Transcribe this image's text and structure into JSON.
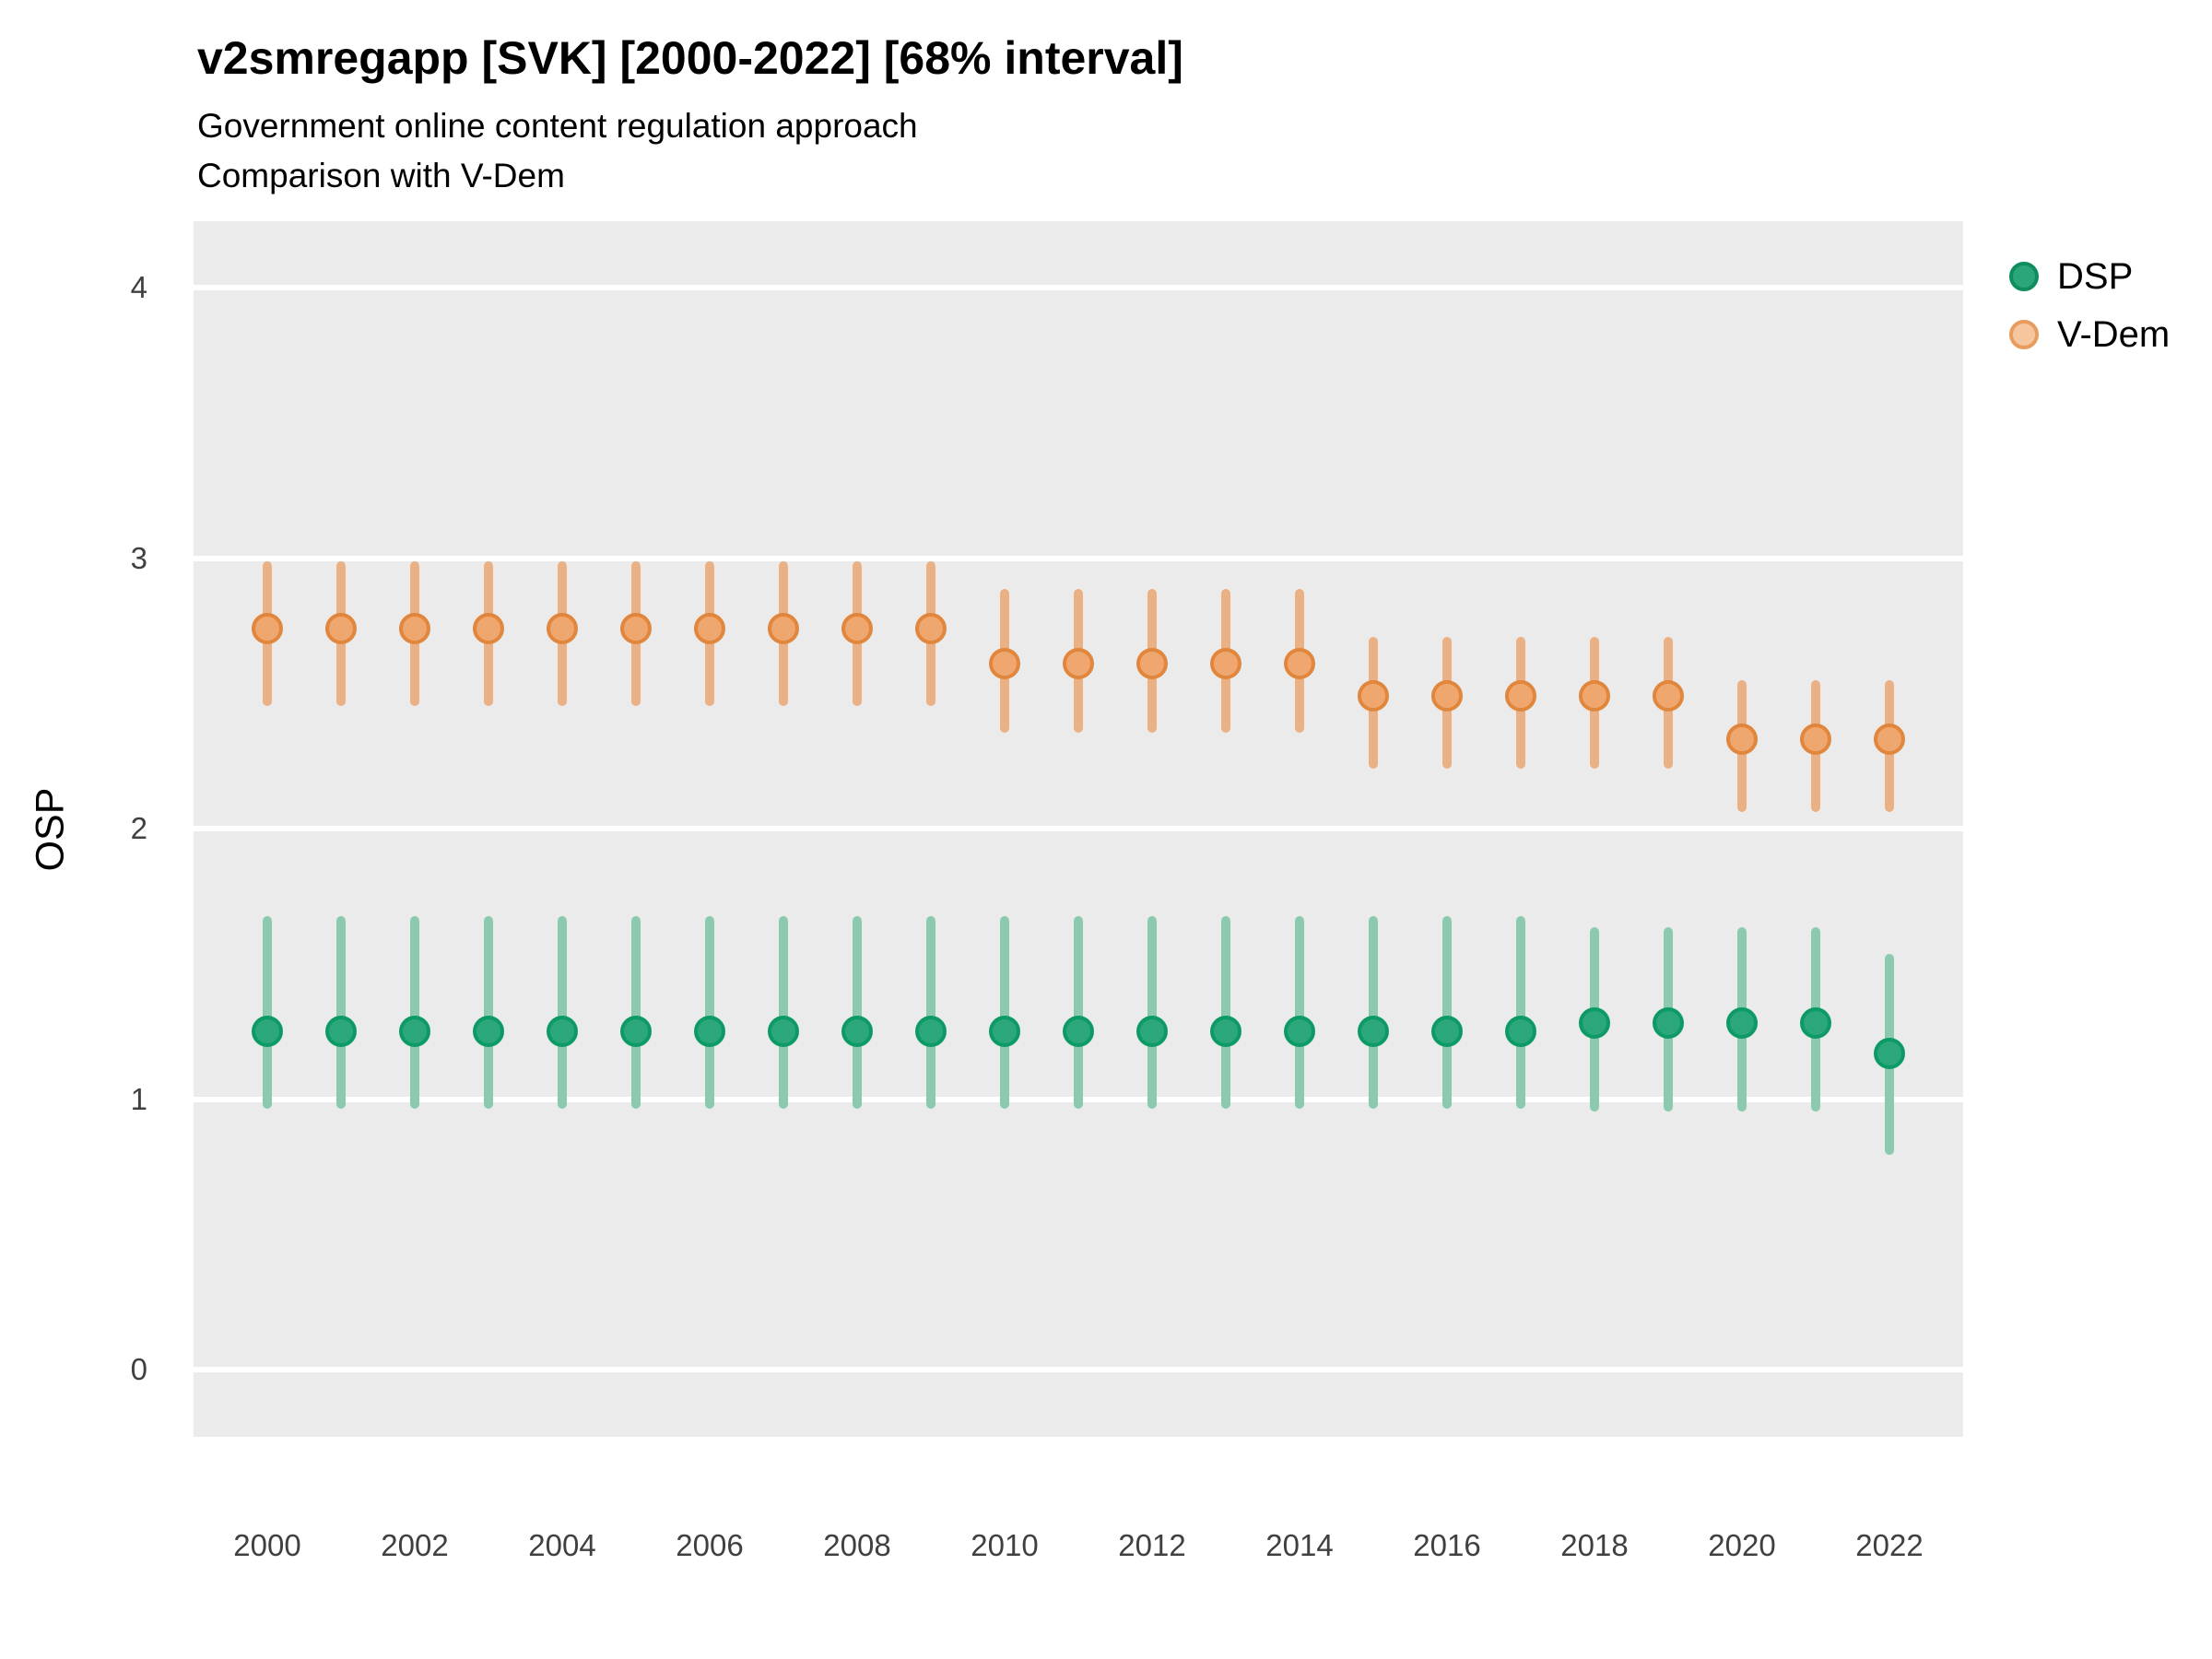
{
  "header": {
    "title": "v2smregapp [SVK] [2000-2022] [68% interval]",
    "subtitle1": "Government online content regulation approach",
    "subtitle2": "Comparison with V-Dem"
  },
  "y_axis": {
    "label": "OSP",
    "ticks": [
      4,
      3,
      2,
      1,
      0
    ]
  },
  "x_axis": {
    "ticks": [
      2000,
      2002,
      2004,
      2006,
      2008,
      2010,
      2012,
      2014,
      2016,
      2018,
      2020,
      2022
    ]
  },
  "legend": {
    "position": "right",
    "items": [
      {
        "label": "DSP",
        "fill": "#2aa678",
        "stroke": "#0e8e5f"
      },
      {
        "label": "V-Dem",
        "fill": "#f6c69f",
        "stroke": "#e89c5d"
      }
    ]
  },
  "colors": {
    "panel_bg": "#ebebeb",
    "grid": "#ffffff",
    "dsp_point_fill": "#2ba77a",
    "dsp_point_stroke": "#0e9a66",
    "dsp_interval": "#8ccab0",
    "vdem_point_fill": "#efa76f",
    "vdem_point_stroke": "#e0873d",
    "vdem_interval": "#ecb085"
  },
  "chart_data": {
    "type": "scatter",
    "title": "v2smregapp [SVK] [2000-2022] [68% interval]",
    "subtitle": "Government online content regulation approach — Comparison with V-Dem",
    "xlabel": "",
    "ylabel": "OSP",
    "interval": "68%",
    "grid": "horizontal-only",
    "legend_position": "right",
    "xlim": [
      1999,
      2023
    ],
    "ylim": [
      -0.25,
      4.25
    ],
    "x": [
      2000,
      2001,
      2002,
      2003,
      2004,
      2005,
      2006,
      2007,
      2008,
      2009,
      2010,
      2011,
      2012,
      2013,
      2014,
      2015,
      2016,
      2017,
      2018,
      2019,
      2020,
      2021,
      2022
    ],
    "series": [
      {
        "name": "DSP",
        "key": "dsp",
        "points": [
          {
            "year": 2000,
            "value": 1.25,
            "lo": 0.98,
            "hi": 1.66
          },
          {
            "year": 2001,
            "value": 1.25,
            "lo": 0.98,
            "hi": 1.66
          },
          {
            "year": 2002,
            "value": 1.25,
            "lo": 0.98,
            "hi": 1.66
          },
          {
            "year": 2003,
            "value": 1.25,
            "lo": 0.98,
            "hi": 1.66
          },
          {
            "year": 2004,
            "value": 1.25,
            "lo": 0.98,
            "hi": 1.66
          },
          {
            "year": 2005,
            "value": 1.25,
            "lo": 0.98,
            "hi": 1.66
          },
          {
            "year": 2006,
            "value": 1.25,
            "lo": 0.98,
            "hi": 1.66
          },
          {
            "year": 2007,
            "value": 1.25,
            "lo": 0.98,
            "hi": 1.66
          },
          {
            "year": 2008,
            "value": 1.25,
            "lo": 0.98,
            "hi": 1.66
          },
          {
            "year": 2009,
            "value": 1.25,
            "lo": 0.98,
            "hi": 1.66
          },
          {
            "year": 2010,
            "value": 1.25,
            "lo": 0.98,
            "hi": 1.66
          },
          {
            "year": 2011,
            "value": 1.25,
            "lo": 0.98,
            "hi": 1.66
          },
          {
            "year": 2012,
            "value": 1.25,
            "lo": 0.98,
            "hi": 1.66
          },
          {
            "year": 2013,
            "value": 1.25,
            "lo": 0.98,
            "hi": 1.66
          },
          {
            "year": 2014,
            "value": 1.25,
            "lo": 0.98,
            "hi": 1.66
          },
          {
            "year": 2015,
            "value": 1.25,
            "lo": 0.98,
            "hi": 1.66
          },
          {
            "year": 2016,
            "value": 1.25,
            "lo": 0.98,
            "hi": 1.66
          },
          {
            "year": 2017,
            "value": 1.25,
            "lo": 0.98,
            "hi": 1.66
          },
          {
            "year": 2018,
            "value": 1.28,
            "lo": 0.97,
            "hi": 1.62
          },
          {
            "year": 2019,
            "value": 1.28,
            "lo": 0.97,
            "hi": 1.62
          },
          {
            "year": 2020,
            "value": 1.28,
            "lo": 0.97,
            "hi": 1.62
          },
          {
            "year": 2021,
            "value": 1.28,
            "lo": 0.97,
            "hi": 1.62
          },
          {
            "year": 2022,
            "value": 1.17,
            "lo": 0.81,
            "hi": 1.52
          }
        ]
      },
      {
        "name": "V-Dem",
        "key": "vdem",
        "points": [
          {
            "year": 2000,
            "value": 2.74,
            "lo": 2.47,
            "hi": 2.97
          },
          {
            "year": 2001,
            "value": 2.74,
            "lo": 2.47,
            "hi": 2.97
          },
          {
            "year": 2002,
            "value": 2.74,
            "lo": 2.47,
            "hi": 2.97
          },
          {
            "year": 2003,
            "value": 2.74,
            "lo": 2.47,
            "hi": 2.97
          },
          {
            "year": 2004,
            "value": 2.74,
            "lo": 2.47,
            "hi": 2.97
          },
          {
            "year": 2005,
            "value": 2.74,
            "lo": 2.47,
            "hi": 2.97
          },
          {
            "year": 2006,
            "value": 2.74,
            "lo": 2.47,
            "hi": 2.97
          },
          {
            "year": 2007,
            "value": 2.74,
            "lo": 2.47,
            "hi": 2.97
          },
          {
            "year": 2008,
            "value": 2.74,
            "lo": 2.47,
            "hi": 2.97
          },
          {
            "year": 2009,
            "value": 2.74,
            "lo": 2.47,
            "hi": 2.97
          },
          {
            "year": 2010,
            "value": 2.61,
            "lo": 2.37,
            "hi": 2.87
          },
          {
            "year": 2011,
            "value": 2.61,
            "lo": 2.37,
            "hi": 2.87
          },
          {
            "year": 2012,
            "value": 2.61,
            "lo": 2.37,
            "hi": 2.87
          },
          {
            "year": 2013,
            "value": 2.61,
            "lo": 2.37,
            "hi": 2.87
          },
          {
            "year": 2014,
            "value": 2.61,
            "lo": 2.37,
            "hi": 2.87
          },
          {
            "year": 2015,
            "value": 2.49,
            "lo": 2.24,
            "hi": 2.69
          },
          {
            "year": 2016,
            "value": 2.49,
            "lo": 2.24,
            "hi": 2.69
          },
          {
            "year": 2017,
            "value": 2.49,
            "lo": 2.24,
            "hi": 2.69
          },
          {
            "year": 2018,
            "value": 2.49,
            "lo": 2.24,
            "hi": 2.69
          },
          {
            "year": 2019,
            "value": 2.49,
            "lo": 2.24,
            "hi": 2.69
          },
          {
            "year": 2020,
            "value": 2.33,
            "lo": 2.08,
            "hi": 2.53
          },
          {
            "year": 2021,
            "value": 2.33,
            "lo": 2.08,
            "hi": 2.53
          },
          {
            "year": 2022,
            "value": 2.33,
            "lo": 2.08,
            "hi": 2.53
          }
        ]
      }
    ]
  }
}
